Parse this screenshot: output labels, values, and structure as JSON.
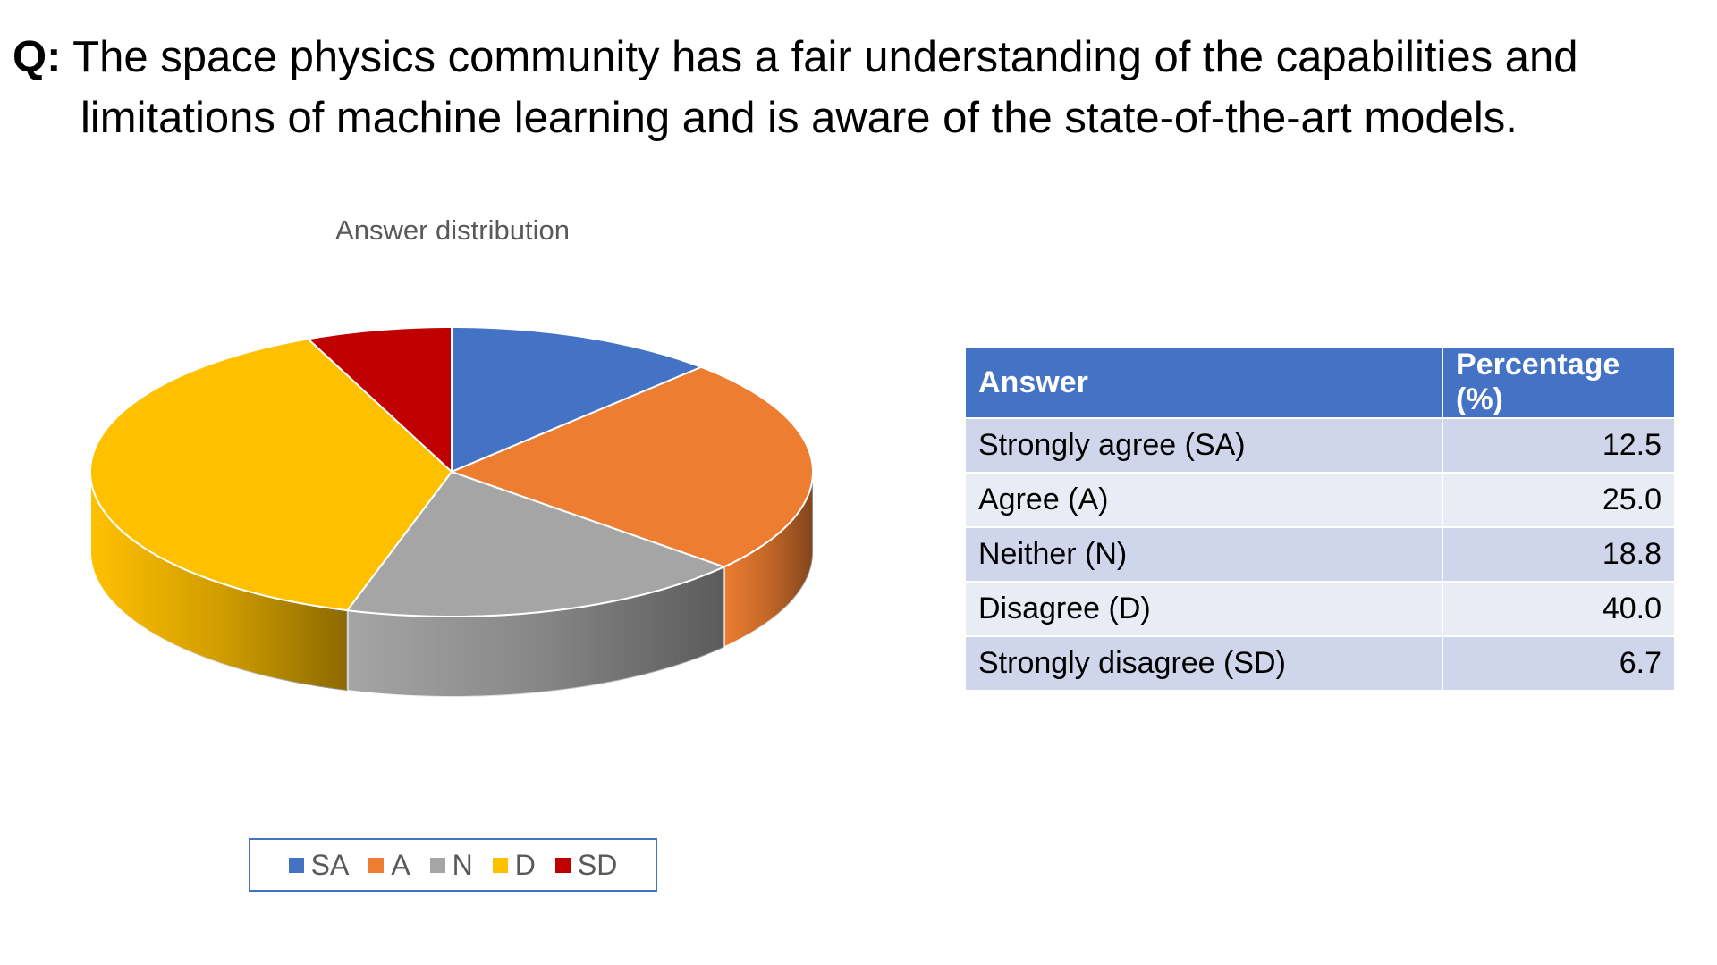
{
  "question": {
    "prefix": "Q:",
    "line1": "The space physics community has a fair understanding of the capabilities and",
    "line2": "limitations of machine learning and is aware of the state-of-the-art models."
  },
  "chart_data": {
    "type": "pie",
    "title": "Answer distribution",
    "style": "3d",
    "categories": [
      "SA",
      "A",
      "N",
      "D",
      "SD"
    ],
    "values": [
      12.5,
      25.0,
      18.8,
      40.0,
      6.7
    ],
    "colors": [
      "#4472c4",
      "#ed7d31",
      "#a5a5a5",
      "#ffc000",
      "#c00000"
    ],
    "legend_position": "bottom"
  },
  "legend": {
    "items": [
      {
        "label": "SA",
        "color": "#4472c4"
      },
      {
        "label": "A",
        "color": "#ed7d31"
      },
      {
        "label": "N",
        "color": "#a5a5a5"
      },
      {
        "label": "D",
        "color": "#ffc000"
      },
      {
        "label": "SD",
        "color": "#c00000"
      }
    ]
  },
  "table": {
    "headers": [
      "Answer",
      "Percentage (%)"
    ],
    "rows": [
      [
        "Strongly agree (SA)",
        "12.5"
      ],
      [
        "Agree (A)",
        "25.0"
      ],
      [
        "Neither (N)",
        "18.8"
      ],
      [
        "Disagree (D)",
        "40.0"
      ],
      [
        "Strongly disagree (SD)",
        "6.7"
      ]
    ],
    "header_color": "#4472c4"
  }
}
